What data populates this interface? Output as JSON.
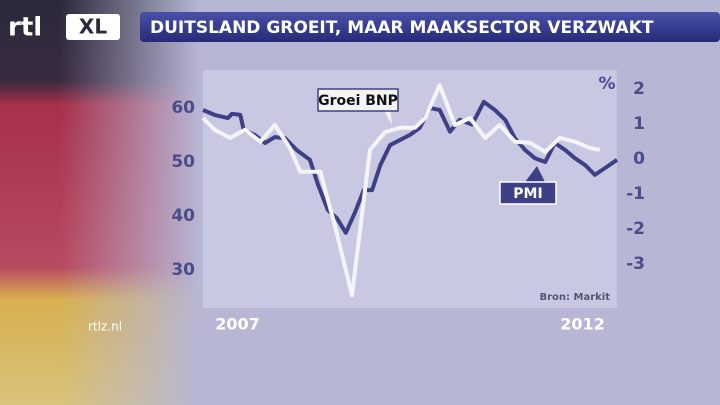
{
  "header": {
    "logo": "rtl",
    "logo_badge": "XL",
    "website": "rtlz.nl"
  },
  "chart_data": {
    "type": "line",
    "title": "DUITSLAND GROEIT, MAAR MAAKSECTOR VERZWAKT",
    "source": "Bron: Markit",
    "y2_unit": "%",
    "xlim": [
      2006.5,
      2012.5
    ],
    "xticks": [
      2007,
      2012
    ],
    "ylim": [
      23,
      67
    ],
    "yticks": [
      30,
      40,
      50,
      60
    ],
    "y2lim": [
      -4.26,
      2.54
    ],
    "y2ticks": [
      -3,
      -2,
      -1,
      0,
      1,
      2
    ],
    "grid": false,
    "series": [
      {
        "name": "PMI",
        "color": "#3e4086",
        "x": [
          2006.5,
          2006.67,
          2006.86,
          2006.92,
          2007.04,
          2007.09,
          2007.25,
          2007.4,
          2007.54,
          2007.69,
          2007.86,
          2008.05,
          2008.17,
          2008.31,
          2008.44,
          2008.57,
          2008.7,
          2008.83,
          2008.95,
          2009.07,
          2009.21,
          2009.36,
          2009.5,
          2009.64,
          2009.79,
          2009.93,
          2010.08,
          2010.22,
          2010.4,
          2010.57,
          2010.73,
          2010.88,
          2011.02,
          2011.17,
          2011.31,
          2011.46,
          2011.6,
          2011.75,
          2011.89,
          2012.04,
          2012.18,
          2012.33,
          2012.5
        ],
        "values": [
          59.6,
          58.7,
          58.1,
          58.9,
          58.7,
          55.9,
          55,
          53.5,
          54.6,
          54.4,
          52.2,
          50.4,
          45.7,
          41.1,
          39.6,
          36.9,
          40.6,
          44.8,
          44.8,
          49.4,
          53.1,
          54.1,
          55,
          56.3,
          60,
          59.6,
          55.6,
          57.8,
          56.9,
          61.1,
          59.6,
          57.8,
          54.4,
          52.2,
          50.7,
          50,
          53.5,
          52.2,
          50.7,
          49.4,
          47.6,
          48.9,
          50.4
        ]
      },
      {
        "name": "Groei BNP",
        "color": "#f4f4f8",
        "axis": "y2",
        "x": [
          2006.5,
          2006.67,
          2006.89,
          2007.11,
          2007.33,
          2007.54,
          2007.76,
          2007.91,
          2008.2,
          2008.41,
          2008.66,
          2008.92,
          2009.14,
          2009.36,
          2009.57,
          2009.72,
          2009.93,
          2010.15,
          2010.37,
          2010.59,
          2010.8,
          2011.02,
          2011.24,
          2011.46,
          2011.67,
          2011.89,
          2012.11,
          2012.25
        ],
        "values": [
          1.17,
          0.83,
          0.6,
          0.83,
          0.49,
          0.97,
          0.31,
          -0.37,
          -0.37,
          -1.89,
          -3.89,
          0.26,
          0.77,
          0.89,
          0.89,
          1.17,
          2.11,
          0.97,
          1.17,
          0.6,
          0.97,
          0.49,
          0.46,
          0.2,
          0.6,
          0.49,
          0.31,
          0.26
        ]
      }
    ]
  }
}
